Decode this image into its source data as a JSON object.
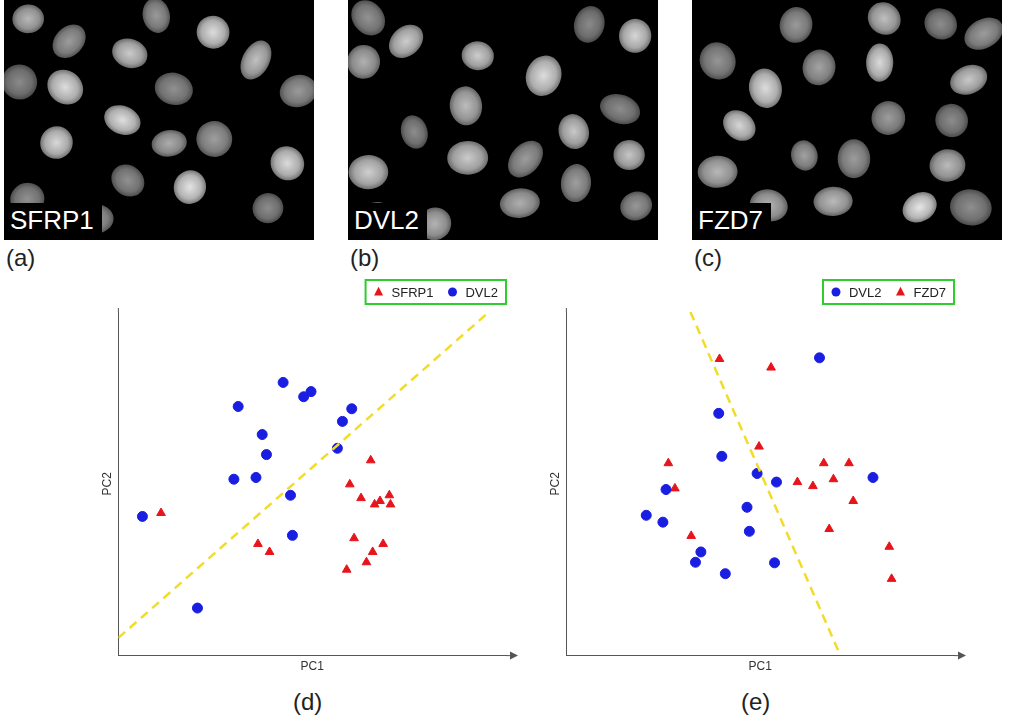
{
  "images": [
    {
      "label": "SFRP1",
      "panel_label": "(a)"
    },
    {
      "label": "DVL2",
      "panel_label": "(b)"
    },
    {
      "label": "FZD7",
      "panel_label": "(c)"
    }
  ],
  "chart_data": [
    {
      "type": "scatter",
      "panel_label": "(d)",
      "x_label": "PC1",
      "y_label": "PC2",
      "xlim": [
        0,
        10
      ],
      "ylim": [
        0,
        6
      ],
      "tick_labels": false,
      "grid": false,
      "legend": "top",
      "series": [
        {
          "name": "SFRP1",
          "color": "#e8141c",
          "marker": "triangle",
          "x": [
            1.1,
            3.6,
            3.9,
            6.51,
            5.97,
            6.26,
            6.75,
            6.99,
            7.02,
            6.61,
            6.08,
            6.83,
            6.56,
            6.4,
            5.89
          ],
          "y": [
            2.49,
            1.95,
            1.81,
            3.41,
            2.99,
            2.75,
            2.7,
            2.8,
            2.64,
            2.64,
            2.05,
            1.95,
            1.81,
            1.63,
            1.5
          ]
        },
        {
          "name": "DVL2",
          "color": "#1a1ee0",
          "marker": "circle",
          "x": [
            0.62,
            2.04,
            3.09,
            3.71,
            3.82,
            2.98,
            3.55,
            4.25,
            4.78,
            4.97,
            5.78,
            6.02,
            5.65,
            4.44,
            4.49
          ],
          "y": [
            2.43,
            0.83,
            4.35,
            3.86,
            3.51,
            3.08,
            3.11,
            4.77,
            4.52,
            4.61,
            4.09,
            4.31,
            3.62,
            2.8,
            2.1
          ]
        },
        {
          "type": "line",
          "color": "#f2dc2a",
          "line_style": "dashed",
          "x": [
            0,
            9.56
          ],
          "y": [
            0.31,
            6
          ]
        }
      ]
    },
    {
      "type": "scatter",
      "panel_label": "(e)",
      "x_label": "PC1",
      "y_label": "PC2",
      "xlim": [
        0,
        10
      ],
      "ylim": [
        0,
        6
      ],
      "tick_labels": false,
      "grid": false,
      "legend": "top",
      "series": [
        {
          "name": "DVL2",
          "color": "#1a1ee0",
          "marker": "circle",
          "x": [
            2.06,
            2.49,
            2.57,
            3.93,
            4.01,
            4.92,
            5.42,
            4.66,
            4.72,
            5.37,
            4.1,
            3.33,
            3.47,
            7.91,
            6.53
          ],
          "y": [
            2.45,
            2.33,
            2.9,
            4.23,
            3.48,
            3.18,
            3.03,
            2.59,
            2.17,
            1.62,
            1.43,
            1.63,
            1.81,
            3.11,
            5.2
          ]
        },
        {
          "name": "FZD7",
          "color": "#e8141c",
          "marker": "triangle",
          "x": [
            3.95,
            5.28,
            4.97,
            2.63,
            2.8,
            3.22,
            5.96,
            6.36,
            6.64,
            6.89,
            7.29,
            7.4,
            6.78,
            8.33,
            8.39
          ],
          "y": [
            5.18,
            5.03,
            3.65,
            3.36,
            2.92,
            2.09,
            3.03,
            2.96,
            3.36,
            3.08,
            3.36,
            2.7,
            2.21,
            1.9,
            1.34
          ]
        },
        {
          "type": "line",
          "color": "#f2dc2a",
          "line_style": "dashed",
          "x": [
            3.2,
            7.07
          ],
          "y": [
            6,
            0
          ]
        }
      ]
    }
  ]
}
